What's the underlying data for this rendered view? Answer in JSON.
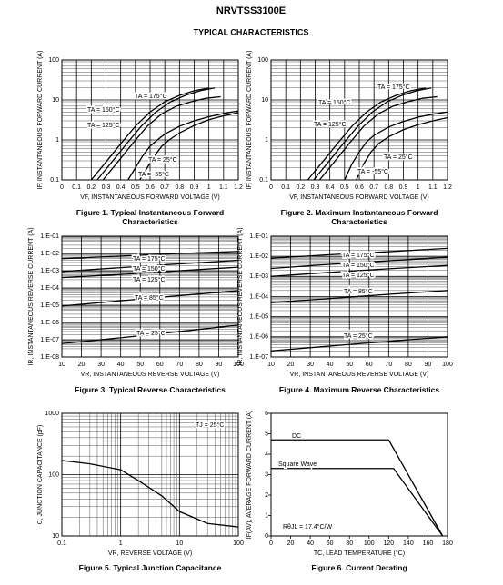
{
  "header": {
    "title": "NRVTSS3100E",
    "subtitle": "TYPICAL CHARACTERISTICS"
  },
  "chart_data": [
    {
      "type": "line",
      "caption": "Figure 1. Typical Instantaneous Forward Characteristics",
      "xlabel": "VF, INSTANTANEOUS FORWARD VOLTAGE (V)",
      "ylabel": "IF, INSTANTANEOUS FORWARD CURRENT (A)",
      "xlim": [
        0,
        1.2
      ],
      "ylim": [
        0.1,
        100
      ],
      "ylog": true,
      "xlog": false,
      "grid": true,
      "xticks": [
        0,
        0.1,
        0.2,
        0.3,
        0.4,
        0.5,
        0.6,
        0.7,
        0.8,
        0.9,
        1.0,
        1.1,
        1.2
      ],
      "yticks": [
        0.1,
        1,
        10,
        100
      ],
      "series": [
        {
          "name": "TA = 175°C",
          "color": "#000000",
          "x": [
            0.2,
            0.3,
            0.4,
            0.5,
            0.6,
            0.7,
            0.8,
            0.9,
            1.0
          ],
          "values": [
            0.1,
            0.28,
            0.8,
            2.2,
            5,
            9,
            13,
            17,
            20
          ]
        },
        {
          "name": "TA = 150°C",
          "color": "#000000",
          "x": [
            0.24,
            0.34,
            0.44,
            0.54,
            0.64,
            0.74,
            0.84,
            0.94,
            1.04
          ],
          "values": [
            0.1,
            0.28,
            0.8,
            2.2,
            5,
            9,
            13,
            17,
            20
          ]
        },
        {
          "name": "TA = 125°C",
          "color": "#000000",
          "x": [
            0.28,
            0.38,
            0.48,
            0.58,
            0.68,
            0.78,
            0.88,
            0.98,
            1.08
          ],
          "values": [
            0.1,
            0.28,
            0.8,
            2.2,
            4.5,
            7,
            9,
            11,
            12
          ]
        },
        {
          "name": "TA = 25°C",
          "color": "#000000",
          "x": [
            0.45,
            0.5,
            0.55,
            0.6,
            0.65,
            0.7,
            0.8,
            0.9,
            1.0,
            1.1,
            1.2
          ],
          "values": [
            0.1,
            0.2,
            0.4,
            0.7,
            1.0,
            1.4,
            2.2,
            3.0,
            3.8,
            4.6,
            5.3
          ]
        },
        {
          "name": "TA = -55°C",
          "color": "#000000",
          "x": [
            0.53,
            0.58,
            0.63,
            0.68,
            0.73,
            0.8,
            0.9,
            1.0,
            1.1,
            1.2
          ],
          "values": [
            0.1,
            0.2,
            0.4,
            0.7,
            1.0,
            1.5,
            2.3,
            3.2,
            4.0,
            4.8
          ]
        }
      ]
    },
    {
      "type": "line",
      "caption": "Figure 2. Maximum Instantaneous Forward Characteristics",
      "xlabel": "VF, INSTANTANEOUS FORWARD VOLTAGE (V)",
      "ylabel": "IF, INSTANTANEOUS FORWARD CURRENT (A)",
      "xlim": [
        0,
        1.2
      ],
      "ylim": [
        0.1,
        100
      ],
      "ylog": true,
      "xlog": false,
      "grid": true,
      "xticks": [
        0,
        0.1,
        0.2,
        0.3,
        0.4,
        0.5,
        0.6,
        0.7,
        0.8,
        0.9,
        1.0,
        1.1,
        1.2
      ],
      "yticks": [
        0.1,
        1,
        10,
        100
      ],
      "series": [
        {
          "name": "TA = 175°C",
          "color": "#000000",
          "x": [
            0.25,
            0.35,
            0.45,
            0.55,
            0.65,
            0.75,
            0.85,
            0.95,
            1.05
          ],
          "values": [
            0.1,
            0.28,
            0.8,
            2.2,
            5,
            9,
            13,
            17,
            20
          ]
        },
        {
          "name": "TA = 150°C",
          "color": "#000000",
          "x": [
            0.29,
            0.39,
            0.49,
            0.59,
            0.69,
            0.79,
            0.89,
            0.99,
            1.09
          ],
          "values": [
            0.1,
            0.28,
            0.8,
            2.2,
            5,
            9,
            13,
            17,
            20
          ]
        },
        {
          "name": "TA = 125°C",
          "color": "#000000",
          "x": [
            0.33,
            0.43,
            0.53,
            0.63,
            0.73,
            0.83,
            0.93,
            1.03,
            1.13
          ],
          "values": [
            0.1,
            0.28,
            0.8,
            2.2,
            4.5,
            7,
            9,
            11,
            12
          ]
        },
        {
          "name": "TA = 25°C",
          "color": "#000000",
          "x": [
            0.5,
            0.55,
            0.6,
            0.65,
            0.7,
            0.8,
            0.9,
            1.0,
            1.1,
            1.2
          ],
          "values": [
            0.1,
            0.25,
            0.5,
            0.9,
            1.3,
            2.1,
            2.9,
            3.7,
            4.4,
            5.0
          ]
        },
        {
          "name": "TA = -55°C",
          "color": "#000000",
          "x": [
            0.58,
            0.63,
            0.68,
            0.73,
            0.8,
            0.9,
            1.0,
            1.1,
            1.2
          ],
          "values": [
            0.1,
            0.25,
            0.5,
            0.8,
            1.2,
            1.8,
            2.4,
            3.0,
            3.6
          ]
        }
      ]
    },
    {
      "type": "line",
      "caption": "Figure 3. Typical Reverse Characteristics",
      "xlabel": "VR, INSTANTANEOUS REVERSE VOLTAGE (V)",
      "ylabel": "IR, INSTANTANEOUS REVERSE CURRENT (A)",
      "xlim": [
        10,
        100
      ],
      "ylim": [
        1e-08,
        0.1
      ],
      "ylog": true,
      "xlog": false,
      "grid": true,
      "xticks": [
        10,
        20,
        30,
        40,
        50,
        60,
        70,
        80,
        90,
        100
      ],
      "yticks": [
        {
          "value": 1e-08,
          "label": "1.E-08"
        },
        {
          "value": 1e-07,
          "label": "1.E-07"
        },
        {
          "value": 1e-06,
          "label": "1.E-06"
        },
        {
          "value": 1e-05,
          "label": "1.E-05"
        },
        {
          "value": 0.0001,
          "label": "1.E-04"
        },
        {
          "value": 0.001,
          "label": "1.E-03"
        },
        {
          "value": 0.01,
          "label": "1.E-02"
        },
        {
          "value": 0.1,
          "label": "1.E-01"
        }
      ],
      "series": [
        {
          "name": "TA = 175°C",
          "color": "#000000",
          "x": [
            10,
            40,
            70,
            100
          ],
          "values": [
            0.005,
            0.007,
            0.01,
            0.013
          ]
        },
        {
          "name": "TA = 150°C",
          "color": "#000000",
          "x": [
            10,
            40,
            70,
            100
          ],
          "values": [
            0.0009,
            0.0015,
            0.0025,
            0.004
          ]
        },
        {
          "name": "TA = 125°C",
          "color": "#000000",
          "x": [
            10,
            40,
            70,
            100
          ],
          "values": [
            0.0004,
            0.0006,
            0.001,
            0.0016
          ]
        },
        {
          "name": "TA = 85°C",
          "color": "#000000",
          "x": [
            10,
            40,
            70,
            100
          ],
          "values": [
            9e-06,
            1.8e-05,
            3.6e-05,
            7e-05
          ]
        },
        {
          "name": "TA = 25°C",
          "color": "#000000",
          "x": [
            10,
            40,
            70,
            100
          ],
          "values": [
            6e-08,
            1.3e-07,
            3e-07,
            7e-07
          ]
        }
      ]
    },
    {
      "type": "line",
      "caption": "Figure 4. Maximum Reverse Characteristics",
      "xlabel": "VR, INSTANTANEOUS REVERSE VOLTAGE (V)",
      "ylabel": "IR, INSTANTANEOUS REVERSE CURRENT (A)",
      "xlim": [
        10,
        100
      ],
      "ylim": [
        1e-07,
        0.1
      ],
      "ylog": true,
      "xlog": false,
      "grid": true,
      "xticks": [
        10,
        20,
        30,
        40,
        50,
        60,
        70,
        80,
        90,
        100
      ],
      "yticks": [
        {
          "value": 1e-07,
          "label": "1.E-07"
        },
        {
          "value": 1e-06,
          "label": "1.E-06"
        },
        {
          "value": 1e-05,
          "label": "1.E-05"
        },
        {
          "value": 0.0001,
          "label": "1.E-04"
        },
        {
          "value": 0.001,
          "label": "1.E-03"
        },
        {
          "value": 0.01,
          "label": "1.E-02"
        },
        {
          "value": 0.1,
          "label": "1.E-01"
        }
      ],
      "series": [
        {
          "name": "TA = 175°C",
          "color": "#000000",
          "x": [
            10,
            40,
            70,
            100
          ],
          "values": [
            0.008,
            0.012,
            0.017,
            0.025
          ]
        },
        {
          "name": "TA = 150°C",
          "color": "#000000",
          "x": [
            10,
            40,
            70,
            100
          ],
          "values": [
            0.0025,
            0.004,
            0.006,
            0.009
          ]
        },
        {
          "name": "TA = 125°C",
          "color": "#000000",
          "x": [
            10,
            40,
            70,
            100
          ],
          "values": [
            0.001,
            0.0016,
            0.0024,
            0.0035
          ]
        },
        {
          "name": "TA = 85°C",
          "color": "#000000",
          "x": [
            10,
            40,
            70,
            100
          ],
          "values": [
            5e-05,
            8e-05,
            0.00013,
            0.0002
          ]
        },
        {
          "name": "TA = 25°C",
          "color": "#000000",
          "x": [
            10,
            40,
            70,
            100
          ],
          "values": [
            2e-07,
            3.5e-07,
            6e-07,
            1e-06
          ]
        }
      ]
    },
    {
      "type": "line",
      "caption": "Figure 5. Typical Junction Capacitance",
      "xlabel": "VR, REVERSE VOLTAGE (V)",
      "ylabel": "C, JUNCTION CAPACITANCE (pF)",
      "xlim": [
        0.1,
        100
      ],
      "ylim": [
        10,
        1000
      ],
      "xlog": true,
      "ylog": true,
      "grid": true,
      "xticks": [
        0.1,
        1,
        10,
        100
      ],
      "yticks": [
        10,
        100,
        1000
      ],
      "annotations": [
        "TJ = 25°C"
      ],
      "series": [
        {
          "name": null,
          "color": "#000000",
          "x": [
            0.1,
            0.3,
            1,
            2,
            5,
            10,
            30,
            100
          ],
          "values": [
            170,
            150,
            120,
            80,
            45,
            25,
            16,
            14
          ]
        }
      ]
    },
    {
      "type": "line",
      "caption": "Figure 6. Current Derating",
      "xlabel": "TC, LEAD TEMPERATURE (°C)",
      "ylabel": "IF(AV), AVERAGE FORWARD CURRENT (A)",
      "xlim": [
        0,
        180
      ],
      "ylim": [
        0,
        6
      ],
      "xlog": false,
      "ylog": false,
      "grid": false,
      "xticks": [
        0,
        20,
        40,
        60,
        80,
        100,
        120,
        140,
        160,
        180
      ],
      "yticks": [
        0,
        1,
        2,
        3,
        4,
        5,
        6
      ],
      "annotations": [
        "RθJL = 17.4°C/W"
      ],
      "series": [
        {
          "name": "DC",
          "color": "#000000",
          "x": [
            0,
            120,
            175
          ],
          "values": [
            4.7,
            4.7,
            0
          ]
        },
        {
          "name": "Square Wave",
          "color": "#000000",
          "x": [
            0,
            125,
            175
          ],
          "values": [
            3.3,
            3.3,
            0
          ]
        }
      ]
    }
  ]
}
